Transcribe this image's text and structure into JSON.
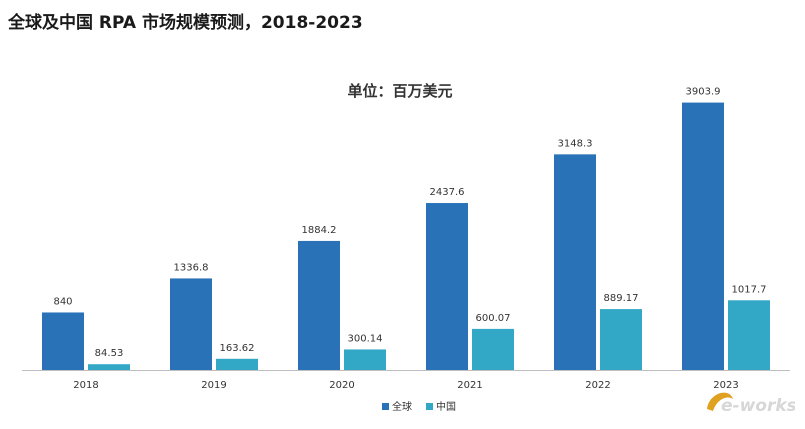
{
  "page": {
    "title": "全球及中国 RPA 市场规模预测，2018-2023"
  },
  "chart_data": {
    "type": "bar",
    "title": "",
    "subtitle": "单位：百万美元",
    "xlabel": "",
    "ylabel": "",
    "categories": [
      "2018",
      "2019",
      "2020",
      "2021",
      "2022",
      "2023"
    ],
    "series": [
      {
        "name": "全球",
        "color": "#2a72b8",
        "values": [
          840,
          1336.8,
          1884.2,
          2437.6,
          3148.3,
          3903.9
        ],
        "labels": [
          "840",
          "1336.8",
          "1884.2",
          "2437.6",
          "3148.3",
          "3903.9"
        ]
      },
      {
        "name": "中国",
        "color": "#33a8c6",
        "values": [
          84.53,
          163.62,
          300.14,
          600.07,
          889.17,
          1017.7
        ],
        "labels": [
          "84.53",
          "163.62",
          "300.14",
          "600.07",
          "889.17",
          "1017.7"
        ]
      }
    ],
    "ylim": [
      0,
      4000
    ],
    "grid": false,
    "legend": "bottom-center",
    "colors": {
      "axis": "#bfbfbf",
      "label": "#333333"
    }
  },
  "watermark": {
    "text": "e-works",
    "colors": {
      "mark": "#e0a020",
      "text": "#d7d7d7"
    }
  }
}
